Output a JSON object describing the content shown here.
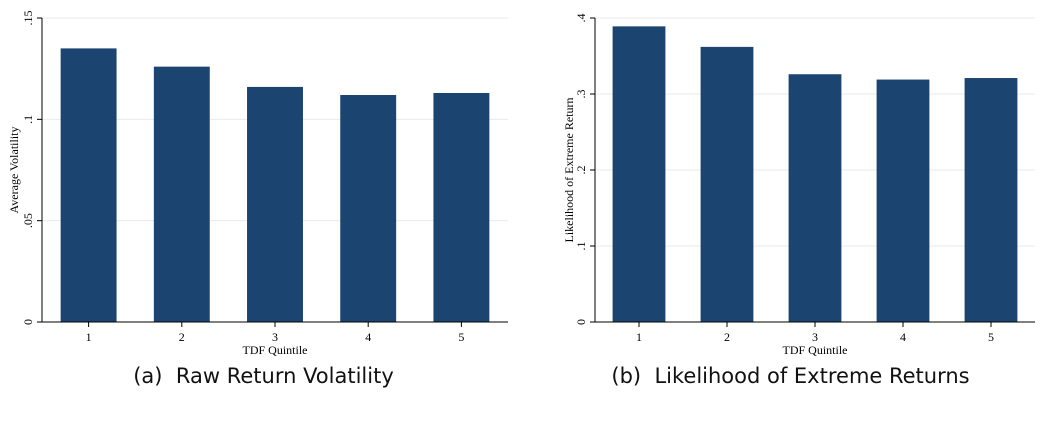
{
  "chart_data": [
    {
      "type": "bar",
      "categories": [
        "1",
        "2",
        "3",
        "4",
        "5"
      ],
      "values": [
        0.135,
        0.126,
        0.116,
        0.112,
        0.113
      ],
      "xlabel": "TDF Quintile",
      "ylabel": "Average Volatility",
      "ylim": [
        0,
        0.15
      ],
      "yticks": [
        0,
        0.05,
        0.1,
        0.15
      ],
      "ytick_labels": [
        "0",
        ".05",
        ".1",
        ".15"
      ],
      "grid": true,
      "color": "#1b4470",
      "caption_tag": "(a)",
      "caption_text": "Raw Return Volatility"
    },
    {
      "type": "bar",
      "categories": [
        "1",
        "2",
        "3",
        "4",
        "5"
      ],
      "values": [
        0.389,
        0.362,
        0.326,
        0.319,
        0.321
      ],
      "xlabel": "TDF Quintile",
      "ylabel": "Likelihood of Extreme Return",
      "ylim": [
        0,
        0.4
      ],
      "yticks": [
        0,
        0.1,
        0.2,
        0.3,
        0.4
      ],
      "ytick_labels": [
        "0",
        ".1",
        ".2",
        ".3",
        ".4"
      ],
      "grid": true,
      "color": "#1b4470",
      "caption_tag": "(b)",
      "caption_text": "Likelihood of Extreme Returns"
    }
  ]
}
